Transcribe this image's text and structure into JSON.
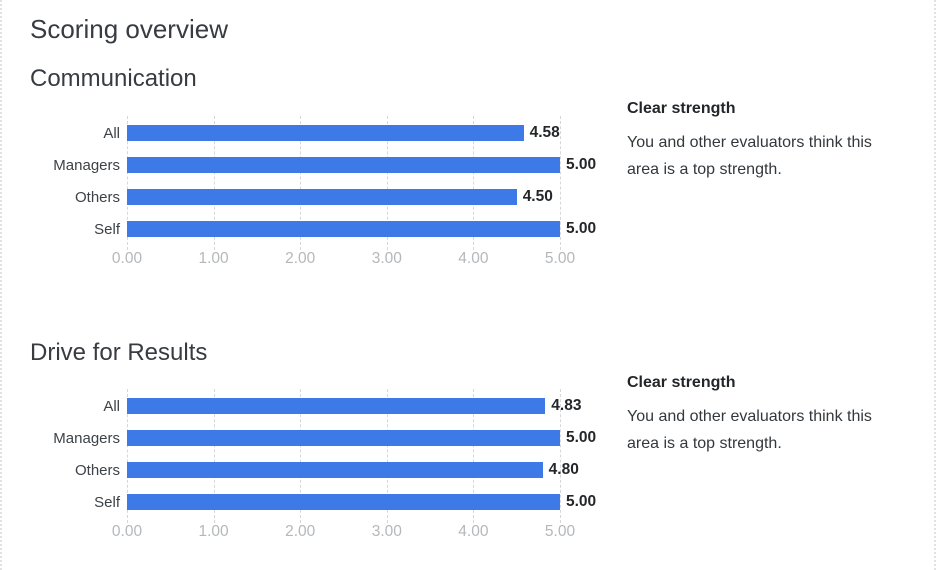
{
  "page": {
    "title": "Scoring overview"
  },
  "colors": {
    "bar": "#3e79e8",
    "grid": "#d7d7d7",
    "axis_text": "#b4b8bb",
    "heading_text": "#363c42",
    "value_text": "#24272a"
  },
  "chart_data": [
    {
      "type": "bar",
      "orientation": "horizontal",
      "title": "Communication",
      "categories": [
        "All",
        "Managers",
        "Others",
        "Self"
      ],
      "values": [
        4.58,
        5.0,
        4.5,
        5.0
      ],
      "value_labels": [
        "4.58",
        "5.00",
        "4.50",
        "5.00"
      ],
      "xlim": [
        0,
        5
      ],
      "ticks": [
        "0.00",
        "1.00",
        "2.00",
        "3.00",
        "4.00",
        "5.00"
      ],
      "grid": true,
      "legend": "none",
      "note": {
        "title": "Clear strength",
        "body": "You and other evaluators think this\narea is a top strength."
      }
    },
    {
      "type": "bar",
      "orientation": "horizontal",
      "title": "Drive for Results",
      "categories": [
        "All",
        "Managers",
        "Others",
        "Self"
      ],
      "values": [
        4.83,
        5.0,
        4.8,
        5.0
      ],
      "value_labels": [
        "4.83",
        "5.00",
        "4.80",
        "5.00"
      ],
      "xlim": [
        0,
        5
      ],
      "ticks": [
        "0.00",
        "1.00",
        "2.00",
        "3.00",
        "4.00",
        "5.00"
      ],
      "grid": true,
      "legend": "none",
      "note": {
        "title": "Clear strength",
        "body": "You and other evaluators think this\narea is a top strength."
      }
    }
  ]
}
